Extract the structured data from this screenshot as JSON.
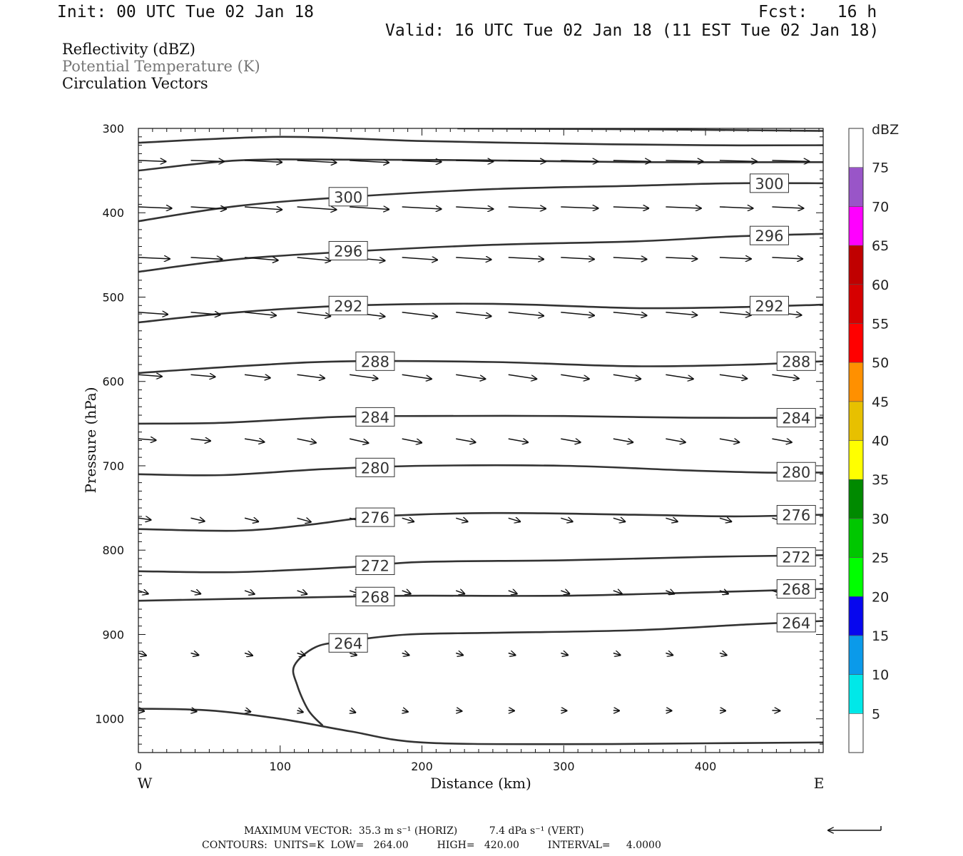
{
  "header": {
    "init": "Init: 00 UTC Tue 02 Jan 18",
    "fcst": "Fcst:   16 h",
    "valid": "Valid: 16 UTC Tue 02 Jan 18 (11 EST Tue 02 Jan 18)"
  },
  "legend": {
    "line1": "Reflectivity (dBZ)",
    "line2": "Potential Temperature (K)",
    "line3": "Circulation Vectors"
  },
  "footer": {
    "line1": "MAXIMUM VECTOR:  35.3 m s⁻¹ (HORIZ)          7.4 dPa s⁻¹ (VERT)",
    "line2": "CONTOURS:  UNITS=K  LOW=   264.00         HIGH=   420.00         INTERVAL=     4.0000"
  },
  "colors": {
    "contour": "#333333",
    "vector": "#111111",
    "axis": "#111111"
  },
  "chart_data": {
    "type": "contour",
    "xlabel": "Distance (km)",
    "ylabel": "Pressure (hPa)",
    "x_ends": {
      "left": "W",
      "right": "E"
    },
    "xlim": [
      0,
      483
    ],
    "ylim": [
      1040,
      300
    ],
    "x_ticks": [
      0,
      100,
      200,
      300,
      400
    ],
    "y_ticks": [
      300,
      400,
      500,
      600,
      700,
      800,
      900,
      1000
    ],
    "grid": false,
    "isentropes": [
      {
        "value": 264,
        "label": "264",
        "points": [
          [
            130,
            1008
          ],
          [
            120,
            990
          ],
          [
            112,
            960
          ],
          [
            110,
            937
          ],
          [
            125,
            915
          ],
          [
            147,
            908
          ],
          [
            190,
            900
          ],
          [
            250,
            898
          ],
          [
            350,
            895
          ],
          [
            430,
            888
          ],
          [
            483,
            884
          ]
        ],
        "labels_at": [
          [
            148,
            910
          ],
          [
            464,
            886
          ]
        ]
      },
      {
        "value": 268,
        "label": "268",
        "points": [
          [
            0,
            860
          ],
          [
            60,
            858
          ],
          [
            150,
            855
          ],
          [
            200,
            854
          ],
          [
            300,
            854
          ],
          [
            400,
            850
          ],
          [
            483,
            846
          ]
        ],
        "labels_at": [
          [
            167,
            855
          ],
          [
            464,
            846
          ]
        ]
      },
      {
        "value": 272,
        "label": "272",
        "points": [
          [
            0,
            825
          ],
          [
            70,
            826
          ],
          [
            150,
            820
          ],
          [
            200,
            814
          ],
          [
            300,
            812
          ],
          [
            400,
            808
          ],
          [
            483,
            806
          ]
        ],
        "labels_at": [
          [
            167,
            818
          ],
          [
            464,
            808
          ]
        ]
      },
      {
        "value": 276,
        "label": "276",
        "points": [
          [
            0,
            775
          ],
          [
            70,
            777
          ],
          [
            120,
            770
          ],
          [
            170,
            760
          ],
          [
            250,
            756
          ],
          [
            350,
            758
          ],
          [
            420,
            760
          ],
          [
            483,
            758
          ]
        ],
        "labels_at": [
          [
            167,
            761
          ],
          [
            464,
            758
          ]
        ]
      },
      {
        "value": 280,
        "label": "280",
        "points": [
          [
            0,
            710
          ],
          [
            60,
            711
          ],
          [
            130,
            704
          ],
          [
            200,
            700
          ],
          [
            300,
            700
          ],
          [
            380,
            705
          ],
          [
            440,
            708
          ],
          [
            483,
            708
          ]
        ],
        "labels_at": [
          [
            167,
            702
          ],
          [
            464,
            707
          ]
        ]
      },
      {
        "value": 284,
        "label": "284",
        "points": [
          [
            0,
            650
          ],
          [
            60,
            649
          ],
          [
            140,
            642
          ],
          [
            200,
            641
          ],
          [
            300,
            641
          ],
          [
            390,
            643
          ],
          [
            483,
            643
          ]
        ],
        "labels_at": [
          [
            167,
            642
          ],
          [
            464,
            643
          ]
        ]
      },
      {
        "value": 288,
        "label": "288",
        "points": [
          [
            0,
            590
          ],
          [
            80,
            581
          ],
          [
            150,
            576
          ],
          [
            250,
            577
          ],
          [
            350,
            582
          ],
          [
            430,
            580
          ],
          [
            483,
            576
          ]
        ],
        "labels_at": [
          [
            167,
            576
          ],
          [
            464,
            576
          ]
        ]
      },
      {
        "value": 292,
        "label": "292",
        "points": [
          [
            0,
            530
          ],
          [
            70,
            518
          ],
          [
            150,
            510
          ],
          [
            250,
            508
          ],
          [
            350,
            513
          ],
          [
            420,
            512
          ],
          [
            483,
            509
          ]
        ],
        "labels_at": [
          [
            148,
            510
          ],
          [
            445,
            510
          ]
        ]
      },
      {
        "value": 296,
        "label": "296",
        "points": [
          [
            0,
            470
          ],
          [
            70,
            455
          ],
          [
            150,
            446
          ],
          [
            250,
            438
          ],
          [
            350,
            434
          ],
          [
            420,
            428
          ],
          [
            483,
            425
          ]
        ],
        "labels_at": [
          [
            148,
            445
          ],
          [
            445,
            427
          ]
        ]
      },
      {
        "value": 300,
        "label": "300",
        "points": [
          [
            0,
            410
          ],
          [
            70,
            392
          ],
          [
            150,
            381
          ],
          [
            250,
            372
          ],
          [
            350,
            368
          ],
          [
            420,
            365
          ],
          [
            483,
            365
          ]
        ],
        "labels_at": [
          [
            148,
            381
          ],
          [
            445,
            365
          ]
        ]
      },
      {
        "value": 304,
        "label": "",
        "points": [
          [
            0,
            350
          ],
          [
            70,
            338
          ],
          [
            150,
            337
          ],
          [
            250,
            338
          ],
          [
            350,
            340
          ],
          [
            483,
            340
          ]
        ],
        "labels_at": []
      },
      {
        "value": 308,
        "label": "",
        "points": [
          [
            0,
            317
          ],
          [
            100,
            310
          ],
          [
            200,
            315
          ],
          [
            300,
            318
          ],
          [
            400,
            320
          ],
          [
            483,
            320
          ]
        ],
        "labels_at": []
      },
      {
        "value": 312,
        "label": "",
        "points": [
          [
            225,
            300
          ],
          [
            350,
            301
          ],
          [
            483,
            303
          ]
        ],
        "labels_at": []
      }
    ],
    "vectors": {
      "x_positions": [
        0,
        37,
        75,
        112,
        149,
        186,
        224,
        261,
        298,
        335,
        372,
        410,
        447
      ],
      "rows": [
        {
          "p": 338,
          "present": [
            0,
            1,
            2,
            3,
            4,
            5,
            6,
            7,
            8,
            9,
            10,
            11,
            12
          ],
          "dx": [
            0.7,
            0.85,
            0.95,
            1.0,
            1.0,
            1.0,
            0.95,
            0.95,
            0.95,
            0.95,
            0.95,
            0.95,
            0.95
          ],
          "dy": [
            0.15,
            0.15,
            0.25,
            0.3,
            0.3,
            0.2,
            0.15,
            0.15,
            0.15,
            0.15,
            0.15,
            0.15,
            0.15
          ]
        },
        {
          "p": 393,
          "present": [
            0,
            1,
            2,
            3,
            4,
            5,
            6,
            7,
            8,
            9,
            10,
            11,
            12
          ],
          "dx": [
            0.85,
            0.9,
            0.95,
            1.0,
            1.0,
            1.0,
            0.95,
            0.95,
            0.95,
            0.9,
            0.9,
            0.85,
            0.8
          ],
          "dy": [
            0.2,
            0.3,
            0.4,
            0.4,
            0.35,
            0.3,
            0.3,
            0.25,
            0.2,
            0.2,
            0.2,
            0.2,
            0.2
          ]
        },
        {
          "p": 453,
          "present": [
            0,
            1,
            2,
            3,
            4,
            5,
            6,
            7,
            8,
            9,
            10,
            11,
            12
          ],
          "dx": [
            0.8,
            0.8,
            0.85,
            0.85,
            0.9,
            0.9,
            0.9,
            0.9,
            0.85,
            0.85,
            0.8,
            0.8,
            0.78
          ],
          "dy": [
            0.2,
            0.25,
            0.4,
            0.45,
            0.45,
            0.35,
            0.3,
            0.25,
            0.25,
            0.25,
            0.2,
            0.2,
            0.2
          ]
        },
        {
          "p": 518,
          "present": [
            0,
            1,
            2,
            3,
            4,
            5,
            6,
            7,
            8,
            9,
            10,
            11,
            12
          ],
          "dx": [
            0.75,
            0.75,
            0.8,
            0.85,
            0.9,
            0.9,
            0.9,
            0.9,
            0.85,
            0.85,
            0.8,
            0.8,
            0.75
          ],
          "dy": [
            0.3,
            0.35,
            0.45,
            0.55,
            0.6,
            0.6,
            0.55,
            0.5,
            0.45,
            0.45,
            0.4,
            0.4,
            0.4
          ]
        },
        {
          "p": 592,
          "present": [
            0,
            1,
            2,
            3,
            4,
            5,
            6,
            7,
            8,
            9,
            10,
            11,
            12
          ],
          "dx": [
            0.6,
            0.62,
            0.65,
            0.7,
            0.72,
            0.75,
            0.75,
            0.72,
            0.72,
            0.7,
            0.7,
            0.7,
            0.68
          ],
          "dy": [
            0.25,
            0.3,
            0.45,
            0.5,
            0.55,
            0.6,
            0.6,
            0.6,
            0.6,
            0.6,
            0.6,
            0.55,
            0.55
          ]
        },
        {
          "p": 668,
          "present": [
            0,
            1,
            2,
            3,
            4,
            5,
            6,
            7,
            8,
            9,
            10,
            11,
            12
          ],
          "dx": [
            0.45,
            0.5,
            0.5,
            0.48,
            0.48,
            0.5,
            0.5,
            0.5,
            0.5,
            0.5,
            0.5,
            0.5,
            0.5
          ],
          "dy": [
            0.2,
            0.3,
            0.45,
            0.55,
            0.6,
            0.55,
            0.5,
            0.5,
            0.5,
            0.5,
            0.5,
            0.5,
            0.5
          ]
        },
        {
          "p": 762,
          "present": [
            0,
            1,
            2,
            3,
            4,
            5,
            6,
            7,
            8,
            9,
            10,
            11,
            12
          ],
          "dx": [
            0.32,
            0.35,
            0.35,
            0.35,
            0.32,
            0.3,
            0.3,
            0.3,
            0.3,
            0.3,
            0.3,
            0.3,
            0.3
          ],
          "dy": [
            0.25,
            0.45,
            0.5,
            0.55,
            0.5,
            0.5,
            0.5,
            0.5,
            0.5,
            0.5,
            0.5,
            0.5,
            0.5
          ]
        },
        {
          "p": 848,
          "present": [
            0,
            1,
            2,
            3,
            4,
            5,
            6,
            7,
            8,
            9,
            10,
            11,
            12
          ],
          "dx": [
            0.25,
            0.25,
            0.25,
            0.25,
            0.25,
            0.22,
            0.22,
            0.22,
            0.22,
            0.22,
            0.22,
            0.22,
            0.25
          ],
          "dy": [
            0.45,
            0.45,
            0.5,
            0.5,
            0.45,
            0.45,
            0.45,
            0.45,
            0.45,
            0.45,
            0.45,
            0.45,
            0.45
          ]
        },
        {
          "p": 922,
          "present": [
            0,
            1,
            2,
            3,
            4,
            5,
            6,
            7,
            8,
            9,
            10,
            11
          ],
          "dx": [
            0.2,
            0.2,
            0.2,
            0.2,
            0.18,
            0.18,
            0.18,
            0.18,
            0.18,
            0.18,
            0.18,
            0.18
          ],
          "dy": [
            0.35,
            0.3,
            0.35,
            0.35,
            0.3,
            0.3,
            0.3,
            0.3,
            0.3,
            0.3,
            0.3,
            0.3
          ]
        },
        {
          "p": 990,
          "present": [
            0,
            1,
            2,
            3,
            4,
            5,
            6,
            7,
            8,
            9,
            10,
            11,
            12
          ],
          "dx": [
            0.15,
            0.15,
            0.15,
            0.15,
            0.15,
            0.15,
            0.15,
            0.15,
            0.15,
            0.15,
            0.15,
            0.15,
            0.2
          ],
          "dy": [
            0.1,
            0.15,
            0.2,
            0.25,
            0.3,
            0.2,
            0.1,
            0.05,
            0.05,
            0.05,
            0.05,
            0.05,
            0.05
          ]
        }
      ]
    },
    "ground": {
      "points": [
        [
          0,
          988
        ],
        [
          50,
          990
        ],
        [
          100,
          1000
        ],
        [
          150,
          1015
        ],
        [
          200,
          1028
        ],
        [
          300,
          1030
        ],
        [
          400,
          1029
        ],
        [
          483,
          1028
        ]
      ]
    },
    "colorbar": {
      "label": "dBZ",
      "levels": [
        "5",
        "10",
        "15",
        "20",
        "25",
        "30",
        "35",
        "40",
        "45",
        "50",
        "55",
        "60",
        "65",
        "70",
        "75"
      ],
      "colors": [
        "#ffffff",
        "#00e8e8",
        "#0a9aea",
        "#0707ee",
        "#00ff00",
        "#00c700",
        "#008a00",
        "#ffff00",
        "#e7c000",
        "#ff9000",
        "#ff0000",
        "#d60000",
        "#c00000",
        "#ff00ff",
        "#9955c8",
        "#ffffff"
      ]
    },
    "max_vector_arrow": "left"
  }
}
